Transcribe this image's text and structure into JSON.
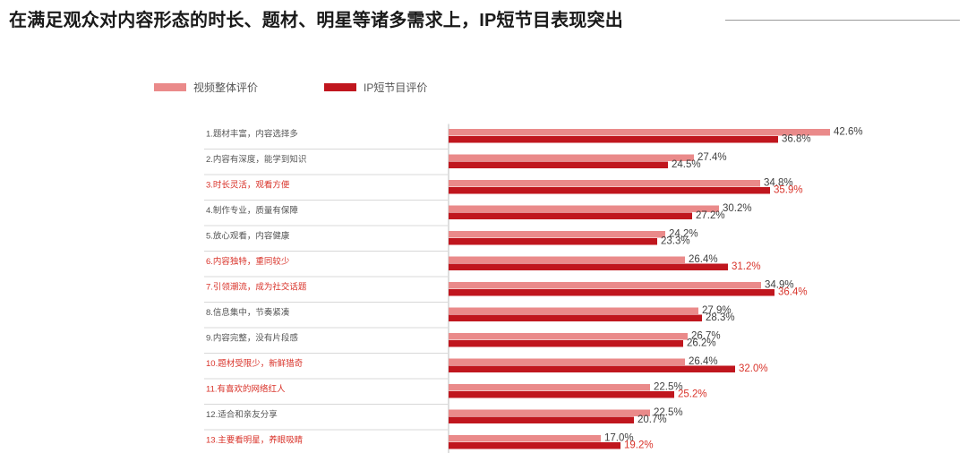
{
  "header": {
    "title": "在满足观众对内容形态的时长、题材、明星等诸多需求上，IP短节目表现突出"
  },
  "colors": {
    "series_overall": "#ea8a8a",
    "series_ip": "#c0161e",
    "highlight_label": "#d9342b",
    "normal_label": "#555555",
    "separator": "#d8d8d8"
  },
  "chart_data": {
    "type": "bar",
    "orientation": "horizontal",
    "legend_position": "top-left",
    "grid": false,
    "xlim": [
      0,
      45
    ],
    "categories": [
      "1.题材丰富，内容选择多",
      "2.内容有深度，能学到知识",
      "3.时长灵活，观看方便",
      "4.制作专业，质量有保障",
      "5.放心观看，内容健康",
      "6.内容独特，重同较少",
      "7.引领潮流，成为社交话题",
      "8.信息集中，节奏紧凑",
      "9.内容完整，没有片段感",
      "10.题材受限少，新鲜猎奇",
      "11.有喜欢的网络红人",
      "12.适合和亲友分享",
      "13.主要看明星，养眼吸睛"
    ],
    "highlighted": [
      false,
      false,
      true,
      false,
      false,
      true,
      true,
      false,
      false,
      true,
      true,
      false,
      true
    ],
    "series": [
      {
        "name": "视频整体评价",
        "values": [
          42.6,
          27.4,
          34.8,
          30.2,
          24.2,
          26.4,
          34.9,
          27.9,
          26.7,
          26.4,
          22.5,
          22.5,
          17.0
        ],
        "labels": [
          "42.6%",
          "27.4%",
          "34.8%",
          "30.2%",
          "24.2%",
          "26.4%",
          "34.9%",
          "27.9%",
          "26.7%",
          "26.4%",
          "22.5%",
          "22.5%",
          "17.0%"
        ]
      },
      {
        "name": "IP短节目评价",
        "values": [
          36.8,
          24.5,
          35.9,
          27.2,
          23.3,
          31.2,
          36.4,
          28.3,
          26.2,
          32.0,
          25.2,
          20.7,
          19.2
        ],
        "labels": [
          "36.8%",
          "24.5%",
          "35.9%",
          "27.2%",
          "23.3%",
          "31.2%",
          "36.4%",
          "28.3%",
          "26.2%",
          "32.0%",
          "25.2%",
          "20.7%",
          "19.2%"
        ]
      }
    ]
  }
}
